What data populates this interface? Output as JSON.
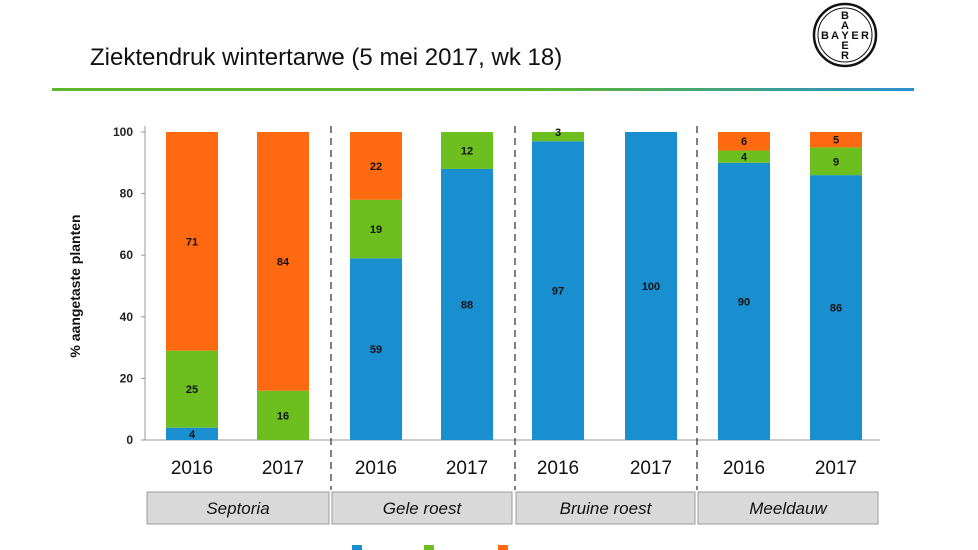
{
  "header": {
    "title": "Ziektendruk wintertarwe (5 mei 2017, wk 18)"
  },
  "logo": {
    "text": "BAYER"
  },
  "colors": {
    "geen": "#1a8fd0",
    "licht": "#6cbf1f",
    "matig_zwaar": "#ff6a10",
    "text": "#111111"
  },
  "chart_data": {
    "type": "bar",
    "stacked": true,
    "ylabel": "% aangetaste planten",
    "ylim": [
      0,
      100
    ],
    "yticks": [
      0,
      20,
      40,
      60,
      80,
      100
    ],
    "groups": [
      {
        "name": "Septoria",
        "years": [
          "2016",
          "2017"
        ]
      },
      {
        "name": "Gele roest",
        "years": [
          "2016",
          "2017"
        ]
      },
      {
        "name": "Bruine roest",
        "years": [
          "2016",
          "2017"
        ]
      },
      {
        "name": "Meeldauw",
        "years": [
          "2016",
          "2017"
        ]
      }
    ],
    "bars": [
      {
        "group": "Septoria",
        "year": "2016",
        "segments": [
          {
            "series": "geen",
            "value": 4,
            "label": "4"
          },
          {
            "series": "licht",
            "value": 25,
            "label": "25"
          },
          {
            "series": "matig_zwaar",
            "value": 71,
            "label": "71"
          }
        ]
      },
      {
        "group": "Septoria",
        "year": "2017",
        "segments": [
          {
            "series": "geen",
            "value": 0,
            "label": ""
          },
          {
            "series": "licht",
            "value": 16,
            "label": "16"
          },
          {
            "series": "matig_zwaar",
            "value": 84,
            "label": "84"
          }
        ]
      },
      {
        "group": "Gele roest",
        "year": "2016",
        "segments": [
          {
            "series": "geen",
            "value": 59,
            "label": "59"
          },
          {
            "series": "licht",
            "value": 19,
            "label": "19"
          },
          {
            "series": "matig_zwaar",
            "value": 22,
            "label": "22"
          }
        ]
      },
      {
        "group": "Gele roest",
        "year": "2017",
        "segments": [
          {
            "series": "geen",
            "value": 88,
            "label": "88"
          },
          {
            "series": "licht",
            "value": 12,
            "label": "12"
          },
          {
            "series": "matig_zwaar",
            "value": 0,
            "label": ""
          }
        ]
      },
      {
        "group": "Bruine roest",
        "year": "2016",
        "segments": [
          {
            "series": "geen",
            "value": 97,
            "label": "97"
          },
          {
            "series": "licht",
            "value": 3,
            "label": "3"
          },
          {
            "series": "matig_zwaar",
            "value": 0,
            "label": ""
          }
        ]
      },
      {
        "group": "Bruine roest",
        "year": "2017",
        "segments": [
          {
            "series": "geen",
            "value": 100,
            "label": "100"
          },
          {
            "series": "licht",
            "value": 0,
            "label": ""
          },
          {
            "series": "matig_zwaar",
            "value": 0,
            "label": ""
          }
        ]
      },
      {
        "group": "Meeldauw",
        "year": "2016",
        "segments": [
          {
            "series": "geen",
            "value": 90,
            "label": "90"
          },
          {
            "series": "licht",
            "value": 4,
            "label": "4"
          },
          {
            "series": "matig_zwaar",
            "value": 6,
            "label": "6"
          }
        ]
      },
      {
        "group": "Meeldauw",
        "year": "2017",
        "segments": [
          {
            "series": "geen",
            "value": 86,
            "label": "86"
          },
          {
            "series": "licht",
            "value": 9,
            "label": "9"
          },
          {
            "series": "matig_zwaar",
            "value": 5,
            "label": "5"
          }
        ]
      }
    ]
  }
}
